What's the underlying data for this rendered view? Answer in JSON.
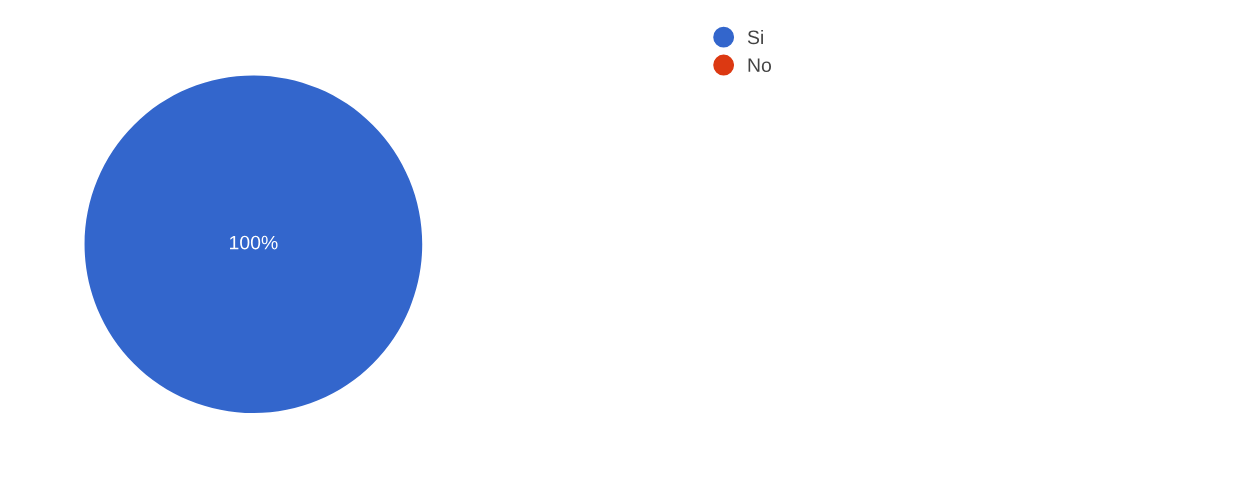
{
  "chart_data": {
    "type": "pie",
    "categories": [
      "Si",
      "No"
    ],
    "values": [
      100,
      0
    ],
    "colors": [
      "#3366cc",
      "#dc3912"
    ],
    "value_labels": [
      "100%",
      null
    ],
    "legend": "top right"
  }
}
